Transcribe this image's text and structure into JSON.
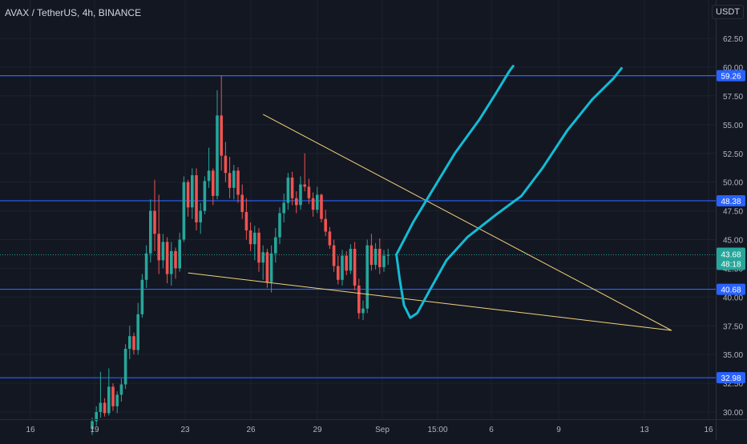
{
  "header": {
    "title": "AVAX / TetherUS, 4h, BINANCE",
    "currency_label": "USDT"
  },
  "colors": {
    "background": "#131722",
    "grid": "#1e222d",
    "text": "#b2b5be",
    "up": "#26a69a",
    "down": "#ef5350",
    "hline": "#2962ff",
    "trendline": "#f2d27b",
    "projection": "#12bcd4",
    "price_badge": "#26a69a"
  },
  "chart_data": {
    "type": "candlestick",
    "symbol": "AVAX / TetherUS",
    "interval": "4h",
    "exchange": "BINANCE",
    "ylim": [
      29.5,
      64.5
    ],
    "y_ticks": [
      "30.00",
      "32.50",
      "35.00",
      "37.50",
      "40.00",
      "42.50",
      "45.00",
      "47.50",
      "50.00",
      "52.50",
      "55.00",
      "57.50",
      "60.00",
      "62.50"
    ],
    "x_ticks": [
      "16",
      "19",
      "23",
      "26",
      "29",
      "Sep",
      "15:00",
      "6",
      "9",
      "13",
      "16"
    ],
    "horizontal_levels": [
      {
        "value": 59.26,
        "label": "59.26"
      },
      {
        "value": 48.38,
        "label": "48.38"
      },
      {
        "value": 40.68,
        "label": "40.68"
      },
      {
        "value": 32.98,
        "label": "32.98"
      }
    ],
    "last_price": {
      "value": 43.68,
      "label": "43.68",
      "countdown": "48:18"
    },
    "candles": [
      [
        28.5,
        29.5,
        28.0,
        29.2
      ],
      [
        29.2,
        30.5,
        28.8,
        30.0
      ],
      [
        30.0,
        33.5,
        29.5,
        30.8
      ],
      [
        30.8,
        31.2,
        29.6,
        29.9
      ],
      [
        29.9,
        33.8,
        29.7,
        32.2
      ],
      [
        32.2,
        32.5,
        30.1,
        30.5
      ],
      [
        30.5,
        31.8,
        29.9,
        31.5
      ],
      [
        31.5,
        32.9,
        30.9,
        32.4
      ],
      [
        32.4,
        35.9,
        32.0,
        35.5
      ],
      [
        35.5,
        37.5,
        34.6,
        36.6
      ],
      [
        36.6,
        36.9,
        35.0,
        35.4
      ],
      [
        35.4,
        39.5,
        35.0,
        38.5
      ],
      [
        38.5,
        42.0,
        38.2,
        41.5
      ],
      [
        41.5,
        44.5,
        40.8,
        43.8
      ],
      [
        43.8,
        48.5,
        43.0,
        47.5
      ],
      [
        47.5,
        50.2,
        44.0,
        45.5
      ],
      [
        45.5,
        48.9,
        42.0,
        43.2
      ],
      [
        43.2,
        45.5,
        42.5,
        44.8
      ],
      [
        44.8,
        45.2,
        41.2,
        42.0
      ],
      [
        42.0,
        44.8,
        41.0,
        44.0
      ],
      [
        44.0,
        44.3,
        41.6,
        42.5
      ],
      [
        42.5,
        45.6,
        42.2,
        45.0
      ],
      [
        45.0,
        50.5,
        44.8,
        50.0
      ],
      [
        50.0,
        50.2,
        47.0,
        47.8
      ],
      [
        47.8,
        51.2,
        46.8,
        50.6
      ],
      [
        50.6,
        51.2,
        45.8,
        46.5
      ],
      [
        46.5,
        48.2,
        45.5,
        47.5
      ],
      [
        47.5,
        50.5,
        47.2,
        50.1
      ],
      [
        50.1,
        53.0,
        49.5,
        51.0
      ],
      [
        51.0,
        51.2,
        48.0,
        48.8
      ],
      [
        48.8,
        58.0,
        48.5,
        55.8
      ],
      [
        55.8,
        59.3,
        51.0,
        52.3
      ],
      [
        52.3,
        53.5,
        50.0,
        50.8
      ],
      [
        50.8,
        52.2,
        48.6,
        49.5
      ],
      [
        49.5,
        51.5,
        48.5,
        51.0
      ],
      [
        51.0,
        51.3,
        48.2,
        48.9
      ],
      [
        48.9,
        49.8,
        46.8,
        47.4
      ],
      [
        47.4,
        48.6,
        45.0,
        45.8
      ],
      [
        45.8,
        46.5,
        44.0,
        44.6
      ],
      [
        44.6,
        46.2,
        43.2,
        45.6
      ],
      [
        45.6,
        46.0,
        42.2,
        43.0
      ],
      [
        43.0,
        44.5,
        41.5,
        43.9
      ],
      [
        43.9,
        44.2,
        40.8,
        41.3
      ],
      [
        41.3,
        44.5,
        40.4,
        43.8
      ],
      [
        43.8,
        46.0,
        43.0,
        45.2
      ],
      [
        45.2,
        47.8,
        44.6,
        47.3
      ],
      [
        47.3,
        49.0,
        46.5,
        48.2
      ],
      [
        48.2,
        50.8,
        47.6,
        50.4
      ],
      [
        50.4,
        50.9,
        48.0,
        48.6
      ],
      [
        48.6,
        49.2,
        47.3,
        48.0
      ],
      [
        48.0,
        50.5,
        47.6,
        49.8
      ],
      [
        49.8,
        52.5,
        49.2,
        49.6
      ],
      [
        49.6,
        50.3,
        48.1,
        48.6
      ],
      [
        48.6,
        49.1,
        47.0,
        47.6
      ],
      [
        47.6,
        49.6,
        47.3,
        48.9
      ],
      [
        48.9,
        49.0,
        46.5,
        46.8
      ],
      [
        46.8,
        47.6,
        45.3,
        45.7
      ],
      [
        45.7,
        46.1,
        44.2,
        44.5
      ],
      [
        44.5,
        45.0,
        42.2,
        42.7
      ],
      [
        42.7,
        43.6,
        41.1,
        41.5
      ],
      [
        41.5,
        44.1,
        41.0,
        43.6
      ],
      [
        43.6,
        44.0,
        41.9,
        42.3
      ],
      [
        42.3,
        44.6,
        42.0,
        44.2
      ],
      [
        44.2,
        44.8,
        40.6,
        41.0
      ],
      [
        41.0,
        41.6,
        38.1,
        38.6
      ],
      [
        38.6,
        39.7,
        38.0,
        39.0
      ],
      [
        39.0,
        45.0,
        38.6,
        44.5
      ],
      [
        44.5,
        45.5,
        42.3,
        42.8
      ],
      [
        42.8,
        44.7,
        42.4,
        44.2
      ],
      [
        44.2,
        45.1,
        42.0,
        42.6
      ],
      [
        42.6,
        44.1,
        42.2,
        43.6
      ],
      [
        43.6,
        44.2,
        42.8,
        43.68
      ]
    ],
    "trendlines": [
      {
        "name": "upper",
        "from": [
          41,
          55.9
        ],
        "to": [
          139,
          37.1
        ]
      },
      {
        "name": "lower",
        "from": [
          23,
          42.1
        ],
        "to": [
          139,
          37.1
        ]
      }
    ],
    "projections": [
      {
        "name": "path-1",
        "points": [
          [
            73,
            43.7
          ],
          [
            77,
            46.5
          ],
          [
            82,
            49.5
          ],
          [
            87,
            52.5
          ],
          [
            93,
            55.5
          ],
          [
            97,
            57.8
          ],
          [
            100,
            59.6
          ],
          [
            101,
            60.1
          ]
        ]
      },
      {
        "name": "path-2",
        "points": [
          [
            73,
            43.7
          ],
          [
            73.8,
            41.5
          ],
          [
            74.8,
            39.3
          ],
          [
            76.3,
            38.2
          ],
          [
            78,
            38.6
          ],
          [
            81,
            40.6
          ],
          [
            85,
            43.2
          ],
          [
            90,
            45.2
          ],
          [
            97,
            47.2
          ],
          [
            103,
            48.8
          ],
          [
            108,
            51.2
          ],
          [
            114,
            54.5
          ],
          [
            120,
            57.2
          ],
          [
            125,
            59.0
          ],
          [
            127,
            59.9
          ]
        ]
      }
    ]
  }
}
